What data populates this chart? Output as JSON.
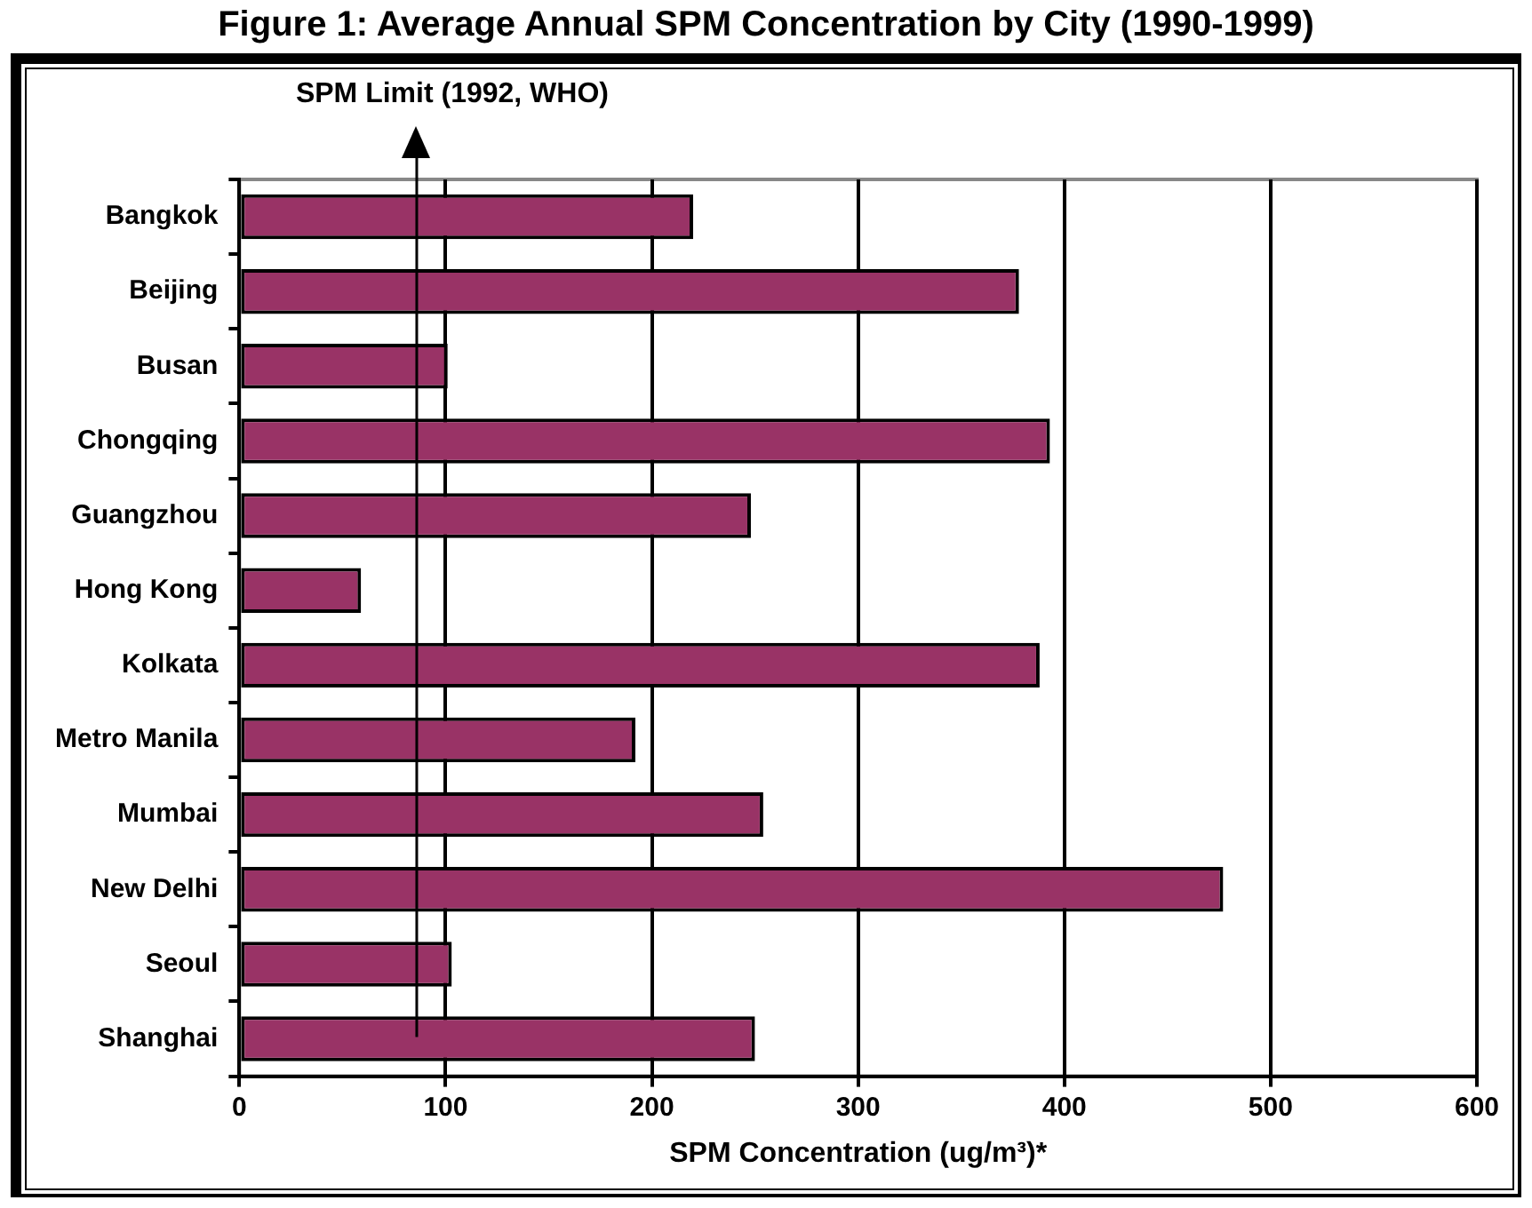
{
  "chart_data": {
    "type": "bar",
    "orientation": "horizontal",
    "title": "Figure 1: Average Annual SPM Concentration by City (1990-1999)",
    "xlabel": "SPM Concentration (ug/m³)*",
    "categories": [
      "Bangkok",
      "Beijing",
      "Busan",
      "Chongqing",
      "Guangzhou",
      "Hong Kong",
      "Kolkata",
      "Metro Manila",
      "Mumbai",
      "New Delhi",
      "Seoul",
      "Shanghai"
    ],
    "values": [
      220,
      378,
      101,
      393,
      248,
      59,
      388,
      192,
      254,
      477,
      103,
      250
    ],
    "color": "#993366",
    "xlim": [
      0,
      600
    ],
    "xticks": [
      0,
      100,
      200,
      300,
      400,
      500,
      600
    ],
    "grid": "x",
    "legend": false,
    "ref_lines": [
      {
        "axis": "x",
        "value": 86,
        "label": "SPM Limit (1992, WHO)",
        "color": "#000000"
      }
    ]
  }
}
